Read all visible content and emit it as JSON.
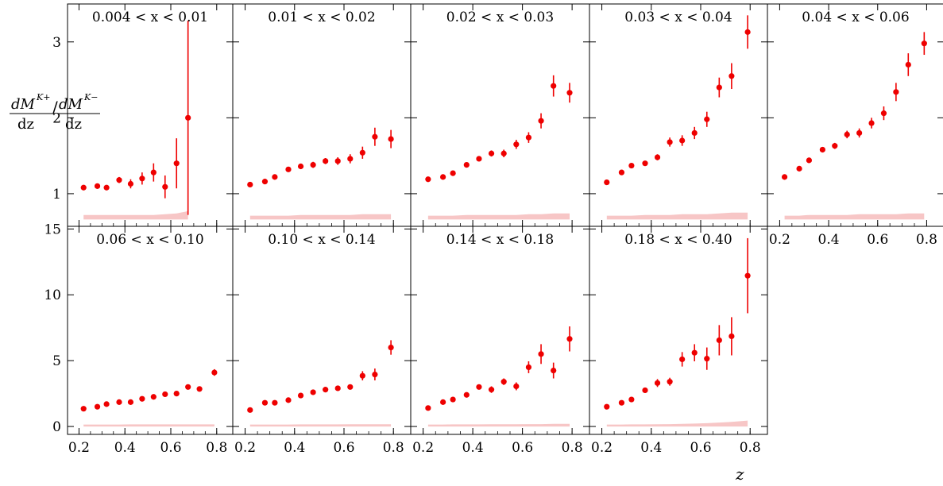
{
  "figure": {
    "ylabel": "dM^{K+}/dz / dM^{K-}/dz",
    "xlabel": "z"
  },
  "chart_data": [
    {
      "type": "scatter",
      "title": "0.004 < x < 0.01",
      "x": [
        0.22,
        0.28,
        0.32,
        0.375,
        0.425,
        0.475,
        0.525,
        0.575,
        0.625,
        0.675
      ],
      "y": [
        1.08,
        1.1,
        1.08,
        1.18,
        1.13,
        1.2,
        1.28,
        1.09,
        1.4,
        2.0
      ],
      "yerr": [
        0.03,
        0.03,
        0.03,
        0.04,
        0.06,
        0.08,
        0.12,
        0.15,
        0.33,
        1.28
      ],
      "band": {
        "lo": 0.66,
        "hi": [
          0.72,
          0.72,
          0.72,
          0.72,
          0.72,
          0.72,
          0.72,
          0.73,
          0.74,
          0.77
        ]
      },
      "xlim": [
        0.15,
        0.87
      ],
      "ylim": [
        0.57,
        3.5
      ],
      "yticks": [
        1,
        2,
        3
      ]
    },
    {
      "type": "scatter",
      "title": "0.01 < x < 0.02",
      "x": [
        0.22,
        0.28,
        0.32,
        0.375,
        0.425,
        0.475,
        0.525,
        0.575,
        0.625,
        0.675,
        0.725,
        0.79
      ],
      "y": [
        1.12,
        1.16,
        1.22,
        1.32,
        1.36,
        1.38,
        1.43,
        1.43,
        1.46,
        1.54,
        1.75,
        1.72
      ],
      "yerr": [
        0.02,
        0.02,
        0.03,
        0.03,
        0.03,
        0.04,
        0.04,
        0.05,
        0.06,
        0.08,
        0.12,
        0.12
      ],
      "band": {
        "lo": 0.66,
        "hi": [
          0.71,
          0.71,
          0.71,
          0.71,
          0.72,
          0.72,
          0.72,
          0.72,
          0.72,
          0.73,
          0.73,
          0.73
        ]
      },
      "xlim": [
        0.15,
        0.87
      ],
      "ylim": [
        0.57,
        3.5
      ],
      "yticks": [
        1,
        2,
        3
      ]
    },
    {
      "type": "scatter",
      "title": "0.02 < x < 0.03",
      "x": [
        0.22,
        0.28,
        0.32,
        0.375,
        0.425,
        0.475,
        0.525,
        0.575,
        0.625,
        0.675,
        0.725,
        0.79
      ],
      "y": [
        1.19,
        1.22,
        1.27,
        1.38,
        1.46,
        1.53,
        1.53,
        1.65,
        1.74,
        1.96,
        2.42,
        2.33
      ],
      "yerr": [
        0.02,
        0.02,
        0.03,
        0.03,
        0.03,
        0.04,
        0.05,
        0.06,
        0.07,
        0.1,
        0.14,
        0.13
      ],
      "band": {
        "lo": 0.66,
        "hi": [
          0.71,
          0.71,
          0.71,
          0.72,
          0.72,
          0.72,
          0.72,
          0.72,
          0.73,
          0.73,
          0.74,
          0.74
        ]
      },
      "xlim": [
        0.15,
        0.87
      ],
      "ylim": [
        0.57,
        3.5
      ],
      "yticks": [
        1,
        2,
        3
      ]
    },
    {
      "type": "scatter",
      "title": "0.03 < x < 0.04",
      "x": [
        0.22,
        0.28,
        0.32,
        0.375,
        0.425,
        0.475,
        0.525,
        0.575,
        0.625,
        0.675,
        0.725,
        0.79
      ],
      "y": [
        1.15,
        1.28,
        1.37,
        1.4,
        1.48,
        1.68,
        1.7,
        1.8,
        1.98,
        2.4,
        2.55,
        3.13
      ],
      "yerr": [
        0.02,
        0.02,
        0.03,
        0.03,
        0.04,
        0.06,
        0.07,
        0.08,
        0.1,
        0.13,
        0.17,
        0.22
      ],
      "band": {
        "lo": 0.66,
        "hi": [
          0.71,
          0.71,
          0.71,
          0.72,
          0.72,
          0.72,
          0.73,
          0.73,
          0.73,
          0.74,
          0.75,
          0.75
        ]
      },
      "xlim": [
        0.15,
        0.87
      ],
      "ylim": [
        0.57,
        3.5
      ],
      "yticks": [
        1,
        2,
        3
      ]
    },
    {
      "type": "scatter",
      "title": "0.04 < x < 0.06",
      "x": [
        0.22,
        0.28,
        0.32,
        0.375,
        0.425,
        0.475,
        0.525,
        0.575,
        0.625,
        0.675,
        0.725,
        0.79
      ],
      "y": [
        1.22,
        1.33,
        1.44,
        1.58,
        1.63,
        1.78,
        1.8,
        1.93,
        2.06,
        2.34,
        2.7,
        2.98
      ],
      "yerr": [
        0.02,
        0.02,
        0.03,
        0.03,
        0.04,
        0.05,
        0.06,
        0.07,
        0.09,
        0.12,
        0.15,
        0.15
      ],
      "band": {
        "lo": 0.66,
        "hi": [
          0.71,
          0.71,
          0.72,
          0.72,
          0.72,
          0.72,
          0.73,
          0.73,
          0.73,
          0.73,
          0.74,
          0.74
        ]
      },
      "xlim": [
        0.15,
        0.87
      ],
      "ylim": [
        0.57,
        3.5
      ],
      "yticks": [
        1,
        2,
        3
      ]
    },
    {
      "type": "scatter",
      "title": "0.06 < x < 0.10",
      "x": [
        0.22,
        0.28,
        0.32,
        0.375,
        0.425,
        0.475,
        0.525,
        0.575,
        0.625,
        0.675,
        0.725,
        0.79
      ],
      "y": [
        1.35,
        1.5,
        1.7,
        1.85,
        1.85,
        2.1,
        2.25,
        2.45,
        2.5,
        3.0,
        2.85,
        4.1
      ],
      "yerr": [
        0.05,
        0.05,
        0.06,
        0.07,
        0.08,
        0.09,
        0.1,
        0.12,
        0.13,
        0.16,
        0.18,
        0.25
      ],
      "band": {
        "lo": 0.0,
        "hi": [
          0.15,
          0.15,
          0.15,
          0.15,
          0.16,
          0.16,
          0.16,
          0.16,
          0.16,
          0.16,
          0.16,
          0.16
        ]
      },
      "xlim": [
        0.15,
        0.87
      ],
      "ylim": [
        -0.6,
        15.2
      ],
      "yticks": [
        0,
        5,
        10,
        15
      ]
    },
    {
      "type": "scatter",
      "title": "0.10 < x < 0.14",
      "x": [
        0.22,
        0.28,
        0.32,
        0.375,
        0.425,
        0.475,
        0.525,
        0.575,
        0.625,
        0.675,
        0.725,
        0.79
      ],
      "y": [
        1.25,
        1.8,
        1.8,
        2.0,
        2.35,
        2.6,
        2.8,
        2.9,
        3.0,
        3.85,
        3.95,
        6.0
      ],
      "yerr": [
        0.05,
        0.05,
        0.06,
        0.07,
        0.08,
        0.09,
        0.1,
        0.12,
        0.15,
        0.35,
        0.45,
        0.55
      ],
      "band": {
        "lo": 0.0,
        "hi": [
          0.15,
          0.15,
          0.15,
          0.15,
          0.16,
          0.16,
          0.16,
          0.16,
          0.17,
          0.17,
          0.17,
          0.17
        ]
      },
      "xlim": [
        0.15,
        0.87
      ],
      "ylim": [
        -0.6,
        15.2
      ],
      "yticks": [
        0,
        5,
        10,
        15
      ]
    },
    {
      "type": "scatter",
      "title": "0.14 < x < 0.18",
      "x": [
        0.22,
        0.28,
        0.32,
        0.375,
        0.425,
        0.475,
        0.525,
        0.575,
        0.625,
        0.675,
        0.725,
        0.79
      ],
      "y": [
        1.4,
        1.85,
        2.05,
        2.4,
        3.0,
        2.8,
        3.4,
        3.05,
        4.5,
        5.5,
        4.25,
        6.65
      ],
      "yerr": [
        0.06,
        0.07,
        0.08,
        0.1,
        0.15,
        0.25,
        0.25,
        0.3,
        0.45,
        0.75,
        0.6,
        0.95
      ],
      "band": {
        "lo": 0.0,
        "hi": [
          0.15,
          0.15,
          0.16,
          0.16,
          0.16,
          0.17,
          0.17,
          0.17,
          0.18,
          0.18,
          0.2,
          0.2
        ]
      },
      "xlim": [
        0.15,
        0.87
      ],
      "ylim": [
        -0.6,
        15.2
      ],
      "yticks": [
        0,
        5,
        10,
        15
      ]
    },
    {
      "type": "scatter",
      "title": "0.18 < x < 0.40",
      "x": [
        0.22,
        0.28,
        0.32,
        0.375,
        0.425,
        0.475,
        0.525,
        0.575,
        0.625,
        0.675,
        0.725,
        0.79
      ],
      "y": [
        1.5,
        1.8,
        2.05,
        2.75,
        3.3,
        3.4,
        5.1,
        5.6,
        5.15,
        6.55,
        6.85,
        11.45
      ],
      "yerr": [
        0.08,
        0.1,
        0.12,
        0.2,
        0.3,
        0.3,
        0.55,
        0.65,
        0.85,
        1.15,
        1.45,
        2.85
      ],
      "band": {
        "lo": 0.0,
        "hi": [
          0.15,
          0.15,
          0.16,
          0.16,
          0.17,
          0.18,
          0.2,
          0.22,
          0.25,
          0.3,
          0.35,
          0.45
        ]
      },
      "xlim": [
        0.15,
        0.87
      ],
      "ylim": [
        -0.6,
        15.2
      ],
      "yticks": [
        0,
        5,
        10,
        15
      ]
    }
  ],
  "xticks": [
    0.2,
    0.4,
    0.6,
    0.8
  ],
  "xtick_labels": [
    "0.2",
    "0.4",
    "0.6",
    "0.8"
  ],
  "colors": {
    "points": "#ee0000",
    "band": "#f7c6c6",
    "frame": "#000000"
  }
}
